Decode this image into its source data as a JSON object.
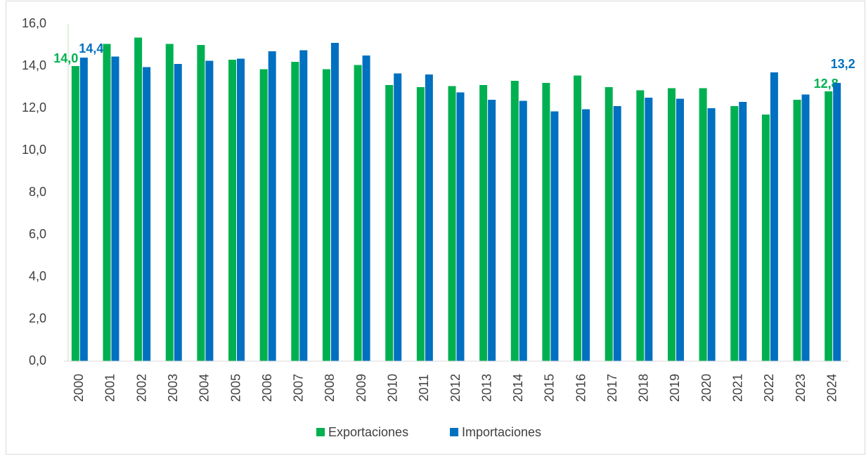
{
  "chart_data": {
    "type": "bar",
    "categories": [
      "2000",
      "2001",
      "2002",
      "2003",
      "2004",
      "2005",
      "2006",
      "2007",
      "2008",
      "2009",
      "2010",
      "2011",
      "2012",
      "2013",
      "2014",
      "2015",
      "2016",
      "2017",
      "2018",
      "2019",
      "2020",
      "2021",
      "2022",
      "2023",
      "2024"
    ],
    "series": [
      {
        "name": "Exportaciones",
        "color": "#00b050",
        "values": [
          14.0,
          15.05,
          15.35,
          15.05,
          15.0,
          14.3,
          13.85,
          14.2,
          13.85,
          14.05,
          13.1,
          13.0,
          13.05,
          13.1,
          13.3,
          13.2,
          13.55,
          13.0,
          12.85,
          12.95,
          12.95,
          12.1,
          11.7,
          12.4,
          12.8
        ],
        "value_labels": [
          "14,0",
          null,
          null,
          null,
          null,
          null,
          null,
          null,
          null,
          null,
          null,
          null,
          null,
          null,
          null,
          null,
          null,
          null,
          null,
          null,
          null,
          null,
          null,
          null,
          "12,8"
        ]
      },
      {
        "name": "Importaciones",
        "color": "#0070c0",
        "values": [
          14.4,
          14.45,
          13.95,
          14.1,
          14.25,
          14.35,
          14.7,
          14.75,
          15.1,
          14.5,
          13.65,
          13.6,
          12.75,
          12.4,
          12.35,
          11.85,
          11.95,
          12.1,
          12.5,
          12.45,
          12.0,
          12.3,
          13.7,
          12.65,
          13.2
        ],
        "value_labels": [
          "14,4",
          null,
          null,
          null,
          null,
          null,
          null,
          null,
          null,
          null,
          null,
          null,
          null,
          null,
          null,
          null,
          null,
          null,
          null,
          null,
          null,
          null,
          null,
          null,
          "13,2"
        ]
      }
    ],
    "ylim": [
      0,
      16
    ],
    "yticks": [
      {
        "value": 0,
        "label": "0,0"
      },
      {
        "value": 2,
        "label": "2,0"
      },
      {
        "value": 4,
        "label": "4,0"
      },
      {
        "value": 6,
        "label": "6,0"
      },
      {
        "value": 8,
        "label": "8,0"
      },
      {
        "value": 10,
        "label": "10,0"
      },
      {
        "value": 12,
        "label": "12,0"
      },
      {
        "value": 14,
        "label": "14,0"
      },
      {
        "value": 16,
        "label": "16,0"
      }
    ],
    "grid": false,
    "legend": "bottom"
  }
}
